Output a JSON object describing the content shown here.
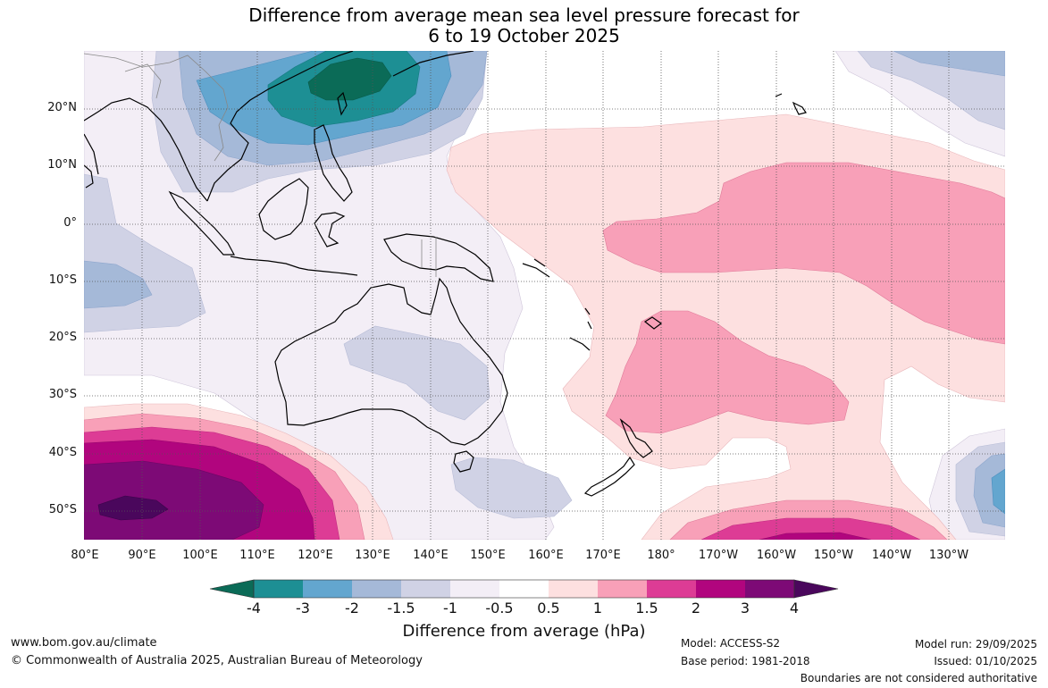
{
  "title": {
    "line1": "Difference from average mean sea level pressure forecast for",
    "line2": "6 to 19 October 2025"
  },
  "axes": {
    "lat_labels": [
      "20°N",
      "10°N",
      "0°",
      "10°S",
      "20°S",
      "30°S",
      "40°S",
      "50°S"
    ],
    "lon_labels": [
      "80°E",
      "90°E",
      "100°E",
      "110°E",
      "120°E",
      "130°E",
      "140°E",
      "150°E",
      "160°E",
      "170°E",
      "180°",
      "170°W",
      "160°W",
      "150°W",
      "140°W",
      "130°W"
    ]
  },
  "colorbar": {
    "title": "Difference from average (hPa)",
    "labels": [
      "-4",
      "-3",
      "-2",
      "-1.5",
      "-1",
      "-0.5",
      "0.5",
      "1",
      "1.5",
      "2",
      "3",
      "4"
    ],
    "colors": [
      "#0b6b57",
      "#1d8f94",
      "#63a6cf",
      "#a5b9d8",
      "#d0d2e5",
      "#f3eef6",
      "#ffffff",
      "#fde0e0",
      "#f8a0b8",
      "#dd3c95",
      "#b1057e",
      "#7d0a76",
      "#4a075c"
    ]
  },
  "footer": {
    "website": "www.bom.gov.au/climate",
    "copyright": "© Commonwealth of Australia 2025, Australian Bureau of Meteorology",
    "model": "Model: ACCESS-S2",
    "base_period": "Base period: 1981-2018",
    "model_run": "Model run: 29/09/2025",
    "issued": "Issued: 01/10/2025",
    "disclaimer": "Boundaries are not considered authoritative"
  }
}
